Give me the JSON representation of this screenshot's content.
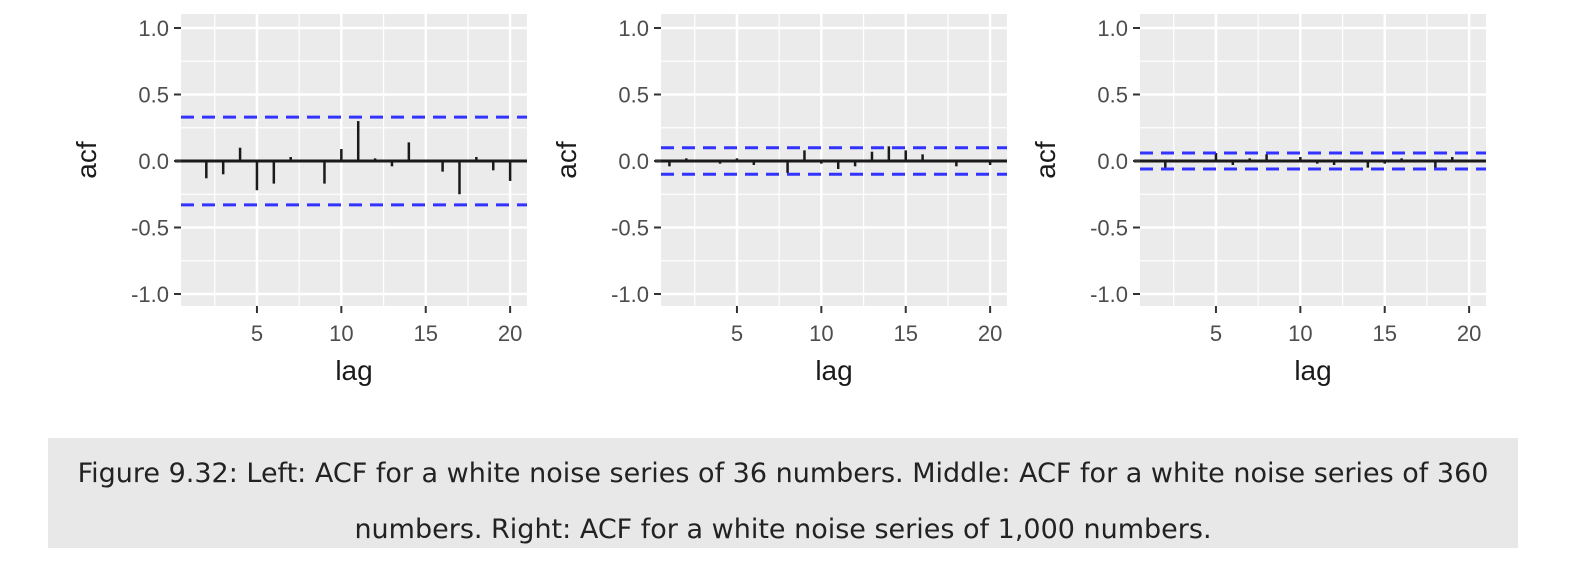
{
  "caption": "Figure 9.32: Left: ACF for a white noise series of 36 numbers. Middle: ACF for a white noise series of 360 numbers. Right: ACF for a white noise series of 1,000 numbers.",
  "colors": {
    "panel_bg": "#ebebeb",
    "grid": "#ffffff",
    "bars": "#1a1a1a",
    "bounds": "#3333ff"
  },
  "chart_data": [
    {
      "type": "bar",
      "xlabel": "lag",
      "ylabel": "acf",
      "ylim": [
        -1.0,
        1.0
      ],
      "xlim": [
        0.5,
        21
      ],
      "x_ticks": [
        5,
        10,
        15,
        20
      ],
      "y_ticks": [
        -1.0,
        -0.5,
        0.0,
        0.5,
        1.0
      ],
      "y_tick_labels": [
        "-1.0",
        "-0.5",
        "0.0",
        "0.5",
        "1.0"
      ],
      "lags": [
        1,
        2,
        3,
        4,
        5,
        6,
        7,
        8,
        9,
        10,
        11,
        12,
        13,
        14,
        15,
        16,
        17,
        18,
        19,
        20
      ],
      "values": [
        0.0,
        -0.13,
        -0.1,
        0.1,
        -0.22,
        -0.17,
        0.03,
        0.0,
        -0.17,
        0.09,
        0.3,
        0.02,
        -0.04,
        0.14,
        0.0,
        -0.08,
        -0.25,
        0.03,
        -0.07,
        -0.15
      ],
      "bounds": [
        0.33,
        -0.33
      ],
      "grid": true
    },
    {
      "type": "bar",
      "xlabel": "lag",
      "ylabel": "acf",
      "ylim": [
        -1.0,
        1.0
      ],
      "xlim": [
        0.5,
        21
      ],
      "x_ticks": [
        5,
        10,
        15,
        20
      ],
      "y_ticks": [
        -1.0,
        -0.5,
        0.0,
        0.5,
        1.0
      ],
      "y_tick_labels": [
        "-1.0",
        "-0.5",
        "0.0",
        "0.5",
        "1.0"
      ],
      "lags": [
        1,
        2,
        3,
        4,
        5,
        6,
        7,
        8,
        9,
        10,
        11,
        12,
        13,
        14,
        15,
        16,
        17,
        18,
        19,
        20
      ],
      "values": [
        -0.04,
        0.02,
        -0.01,
        -0.02,
        0.02,
        -0.03,
        0.01,
        -0.09,
        0.08,
        -0.02,
        -0.06,
        -0.04,
        0.07,
        0.11,
        0.08,
        0.05,
        0.0,
        -0.04,
        0.01,
        -0.03
      ],
      "bounds": [
        0.1,
        -0.1
      ],
      "grid": true
    },
    {
      "type": "bar",
      "xlabel": "lag",
      "ylabel": "acf",
      "ylim": [
        -1.0,
        1.0
      ],
      "xlim": [
        0.5,
        21
      ],
      "x_ticks": [
        5,
        10,
        15,
        20
      ],
      "y_ticks": [
        -1.0,
        -0.5,
        0.0,
        0.5,
        1.0
      ],
      "y_tick_labels": [
        "-1.0",
        "-0.5",
        "0.0",
        "0.5",
        "1.0"
      ],
      "lags": [
        1,
        2,
        3,
        4,
        5,
        6,
        7,
        8,
        9,
        10,
        11,
        12,
        13,
        14,
        15,
        16,
        17,
        18,
        19,
        20
      ],
      "values": [
        0.0,
        -0.05,
        0.01,
        0.0,
        0.06,
        -0.03,
        0.02,
        0.05,
        0.0,
        0.03,
        -0.02,
        -0.03,
        0.0,
        -0.05,
        -0.02,
        0.02,
        0.0,
        -0.05,
        0.03,
        0.0
      ],
      "bounds": [
        0.06,
        -0.06
      ],
      "grid": true
    }
  ]
}
